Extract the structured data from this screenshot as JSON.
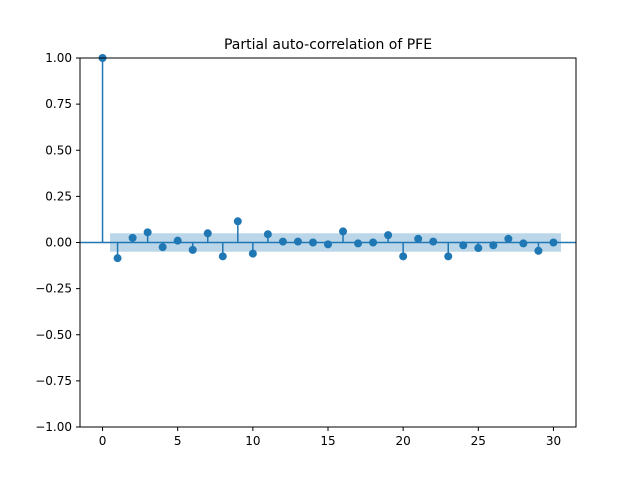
{
  "chart_data": {
    "type": "stem",
    "title": "Partial auto-correlation of PFE",
    "xlabel": "",
    "ylabel": "",
    "xlim": [
      -1.5,
      31.5
    ],
    "ylim": [
      -1.0,
      1.0
    ],
    "x_ticks": [
      0,
      5,
      10,
      15,
      20,
      25,
      30
    ],
    "y_ticks": [
      -1.0,
      -0.75,
      -0.5,
      -0.25,
      0.0,
      0.25,
      0.5,
      0.75,
      1.0
    ],
    "x_tick_labels": [
      "0",
      "5",
      "10",
      "15",
      "20",
      "25",
      "30"
    ],
    "y_tick_labels": [
      "−1.00",
      "−0.75",
      "−0.50",
      "−0.25",
      "0.00",
      "0.25",
      "0.50",
      "0.75",
      "1.00"
    ],
    "grid": false,
    "lags": [
      0,
      1,
      2,
      3,
      4,
      5,
      6,
      7,
      8,
      9,
      10,
      11,
      12,
      13,
      14,
      15,
      16,
      17,
      18,
      19,
      20,
      21,
      22,
      23,
      24,
      25,
      26,
      27,
      28,
      29,
      30
    ],
    "values": [
      1.0,
      -0.085,
      0.025,
      0.055,
      -0.025,
      0.01,
      -0.04,
      0.05,
      -0.075,
      0.115,
      -0.06,
      0.045,
      0.005,
      0.005,
      0.0,
      -0.01,
      0.06,
      -0.005,
      0.0,
      0.04,
      -0.075,
      0.02,
      0.005,
      -0.075,
      -0.015,
      -0.03,
      -0.015,
      0.02,
      -0.005,
      -0.045,
      0.0
    ],
    "confidence_band": {
      "lag_start": 0.5,
      "lag_end": 30.5,
      "lower": -0.05,
      "upper": 0.05
    },
    "colors": {
      "stem": "#1f77b4",
      "band": "#1f77b4",
      "band_opacity": 0.3
    }
  }
}
